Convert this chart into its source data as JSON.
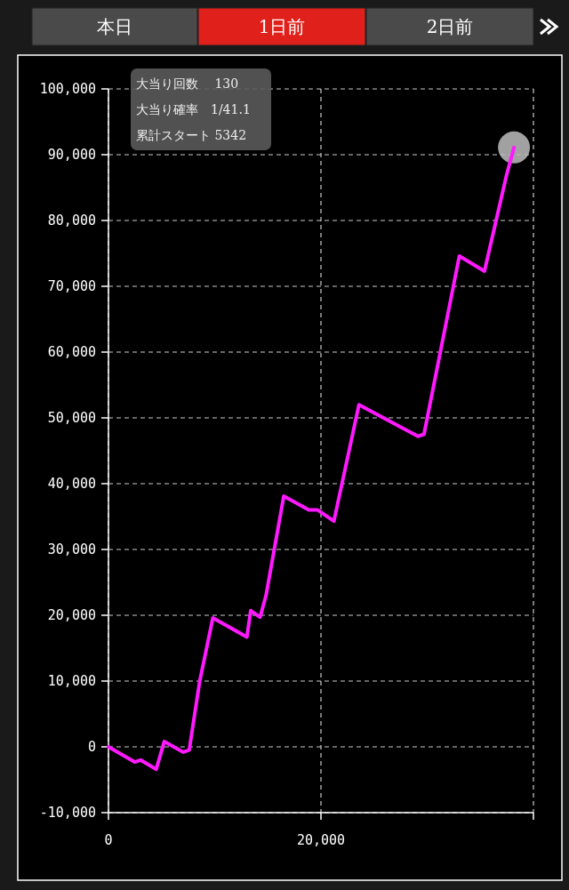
{
  "chart_data": {
    "type": "line",
    "x": [
      0,
      2470,
      3020,
      4500,
      5250,
      7050,
      7600,
      8580,
      9830,
      13030,
      13390,
      14270,
      14830,
      16500,
      18860,
      19700,
      21220,
      23580,
      29140,
      29700,
      33030,
      35390,
      37470,
      38170
    ],
    "series": [
      {
        "color": "#ff19ff",
        "values": [
          0,
          -2300,
          -2000,
          -3400,
          800,
          -800,
          -500,
          9900,
          19600,
          16700,
          20700,
          19700,
          23000,
          38100,
          36000,
          36000,
          34300,
          52000,
          47200,
          47500,
          74600,
          72300,
          86900,
          91100
        ]
      },
      {
        "type": "scatter",
        "color": "#bdbdbd",
        "x": [
          38170
        ],
        "values": [
          91100
        ]
      }
    ],
    "xlim": [
      0,
      40000
    ],
    "xticks": [
      {
        "value": 0,
        "label": "0"
      },
      {
        "value": 20000,
        "label": "20,000"
      },
      {
        "value": 40000,
        "label": null
      }
    ],
    "ylim": [
      -10000,
      100000
    ],
    "yticks": [
      {
        "value": -10000,
        "label": "-10,000"
      },
      {
        "value": 0,
        "label": "0"
      },
      {
        "value": 10000,
        "label": "10,000"
      },
      {
        "value": 20000,
        "label": "20,000"
      },
      {
        "value": 30000,
        "label": "30,000"
      },
      {
        "value": 40000,
        "label": "40,000"
      },
      {
        "value": 50000,
        "label": "50,000"
      },
      {
        "value": 60000,
        "label": "60,000"
      },
      {
        "value": 70000,
        "label": "70,000"
      },
      {
        "value": 80000,
        "label": "80,000"
      },
      {
        "value": 90000,
        "label": "90,000"
      },
      {
        "value": 100000,
        "label": "100,000"
      }
    ],
    "grid": true,
    "line_style": "solid",
    "annotations": [
      "本日",
      "1日前",
      "2日前",
      "大当り回数　 130",
      "大当り確率　1/41.1",
      "累計スタート 5342"
    ]
  }
}
